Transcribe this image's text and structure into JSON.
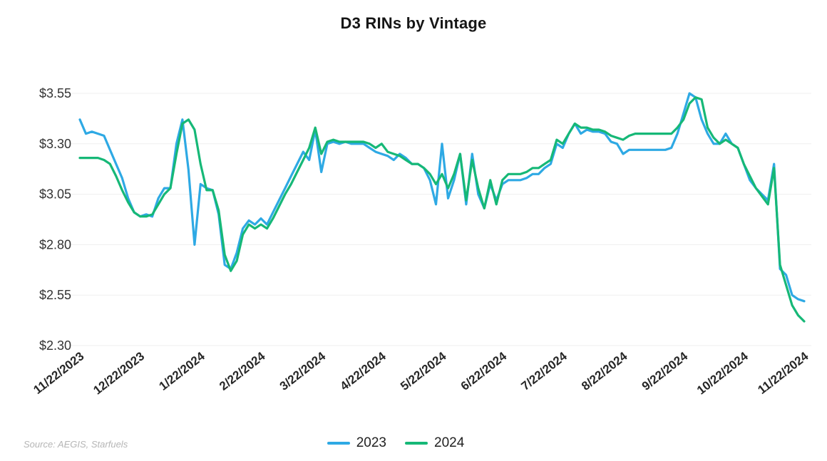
{
  "chart_data": {
    "type": "line",
    "title": "D3 RINs by Vintage",
    "source": "Source: AEGIS, Starfuels",
    "xlabel": "",
    "ylabel": "",
    "ylim": [
      2.3,
      3.55
    ],
    "grid": true,
    "legend_position": "bottom",
    "y_ticks": [
      2.3,
      2.55,
      2.8,
      3.05,
      3.3,
      3.55
    ],
    "y_tick_labels": [
      "$2.30",
      "$2.55",
      "$2.80",
      "$3.05",
      "$3.30",
      "$3.55"
    ],
    "x_tick_labels": [
      "11/22/2023",
      "12/22/2023",
      "1/22/2024",
      "2/22/2024",
      "3/22/2024",
      "4/22/2024",
      "5/22/2024",
      "6/22/2024",
      "7/22/2024",
      "8/22/2024",
      "9/22/2024",
      "10/22/2024",
      "11/22/2024"
    ],
    "series": [
      {
        "name": "2023",
        "color": "#2EA9E4",
        "values": [
          3.42,
          3.35,
          3.36,
          3.35,
          3.34,
          3.27,
          3.2,
          3.13,
          3.03,
          2.96,
          2.94,
          2.95,
          2.94,
          3.03,
          3.08,
          3.08,
          3.3,
          3.42,
          3.17,
          2.8,
          3.1,
          3.08,
          3.07,
          2.95,
          2.7,
          2.68,
          2.76,
          2.88,
          2.92,
          2.9,
          2.93,
          2.9,
          2.96,
          3.02,
          3.08,
          3.14,
          3.2,
          3.26,
          3.22,
          3.37,
          3.16,
          3.3,
          3.31,
          3.3,
          3.31,
          3.3,
          3.3,
          3.3,
          3.28,
          3.26,
          3.25,
          3.24,
          3.22,
          3.25,
          3.23,
          3.2,
          3.2,
          3.18,
          3.12,
          3.0,
          3.3,
          3.03,
          3.12,
          3.25,
          3.0,
          3.25,
          3.05,
          2.98,
          3.1,
          3.02,
          3.1,
          3.12,
          3.12,
          3.12,
          3.13,
          3.15,
          3.15,
          3.18,
          3.2,
          3.3,
          3.28,
          3.35,
          3.4,
          3.35,
          3.37,
          3.36,
          3.36,
          3.35,
          3.31,
          3.3,
          3.25,
          3.27,
          3.27,
          3.27,
          3.27,
          3.27,
          3.27,
          3.27,
          3.28,
          3.35,
          3.45,
          3.55,
          3.53,
          3.42,
          3.35,
          3.3,
          3.3,
          3.35,
          3.3,
          3.28,
          3.2,
          3.12,
          3.08,
          3.05,
          3.02,
          3.2,
          2.68,
          2.65,
          2.55,
          2.53,
          2.52
        ]
      },
      {
        "name": "2024",
        "color": "#16B877",
        "values": [
          3.23,
          3.23,
          3.23,
          3.23,
          3.22,
          3.2,
          3.14,
          3.07,
          3.01,
          2.96,
          2.94,
          2.94,
          2.95,
          3.0,
          3.05,
          3.08,
          3.25,
          3.4,
          3.42,
          3.37,
          3.2,
          3.07,
          3.07,
          2.97,
          2.75,
          2.67,
          2.72,
          2.85,
          2.9,
          2.88,
          2.9,
          2.88,
          2.93,
          2.99,
          3.05,
          3.1,
          3.16,
          3.22,
          3.28,
          3.38,
          3.25,
          3.31,
          3.32,
          3.31,
          3.31,
          3.31,
          3.31,
          3.31,
          3.3,
          3.28,
          3.3,
          3.26,
          3.25,
          3.24,
          3.22,
          3.2,
          3.2,
          3.18,
          3.15,
          3.1,
          3.15,
          3.08,
          3.15,
          3.25,
          3.02,
          3.22,
          3.08,
          2.98,
          3.12,
          3.0,
          3.12,
          3.15,
          3.15,
          3.15,
          3.16,
          3.18,
          3.18,
          3.2,
          3.22,
          3.32,
          3.3,
          3.35,
          3.4,
          3.38,
          3.38,
          3.37,
          3.37,
          3.36,
          3.34,
          3.33,
          3.32,
          3.34,
          3.35,
          3.35,
          3.35,
          3.35,
          3.35,
          3.35,
          3.35,
          3.38,
          3.42,
          3.5,
          3.53,
          3.52,
          3.38,
          3.33,
          3.3,
          3.32,
          3.3,
          3.28,
          3.2,
          3.14,
          3.08,
          3.04,
          3.0,
          3.18,
          2.7,
          2.6,
          2.5,
          2.45,
          2.42
        ]
      }
    ],
    "style": {
      "gridline_color": "#efefef",
      "axis_label_color": "#262626",
      "y_label_color": "#333333"
    }
  }
}
